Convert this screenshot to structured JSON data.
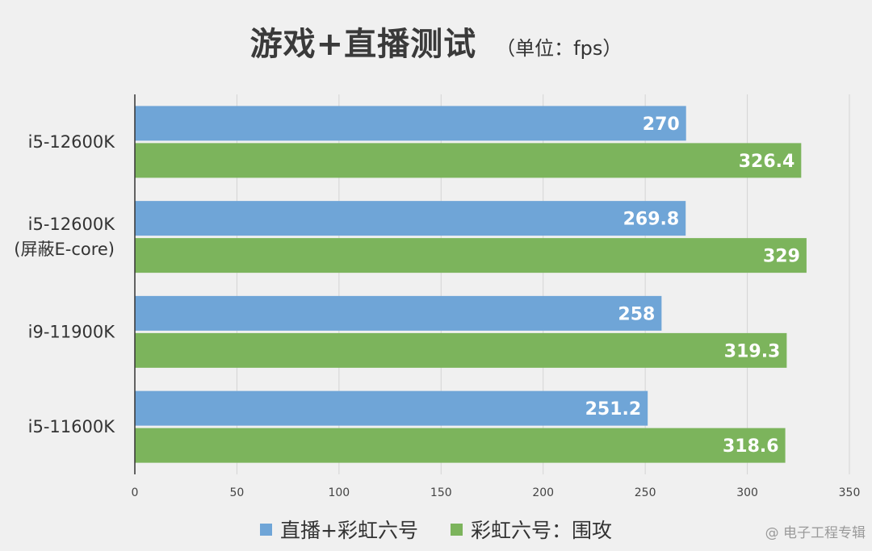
{
  "title": "游戏+直播测试",
  "unit_label": "（单位：fps）",
  "watermark": "@ 电子工程专辑",
  "colors": {
    "series_1": "#6fa5d7",
    "series_2": "#7cb45c",
    "gridline": "#d4d4d4",
    "axis": "#333333"
  },
  "chart_data": {
    "type": "bar",
    "orientation": "horizontal",
    "categories": [
      [
        "i5-12600K"
      ],
      [
        "i5-12600K",
        "(屏蔽E-core)"
      ],
      [
        "i9-11900K"
      ],
      [
        "i5-11600K"
      ]
    ],
    "series": [
      {
        "name": "直播+彩虹六号",
        "values": [
          270,
          269.8,
          258,
          251.2
        ],
        "labels": [
          "270",
          "269.8",
          "258",
          "251.2"
        ]
      },
      {
        "name": "彩虹六号：围攻",
        "values": [
          326.4,
          329,
          319.3,
          318.6
        ],
        "labels": [
          "326.4",
          "329",
          "319.3",
          "318.6"
        ]
      }
    ],
    "xlim": [
      0,
      350
    ],
    "xticks": [
      0,
      50,
      100,
      150,
      200,
      250,
      300,
      350
    ],
    "grid": true,
    "legend_position": "bottom"
  }
}
